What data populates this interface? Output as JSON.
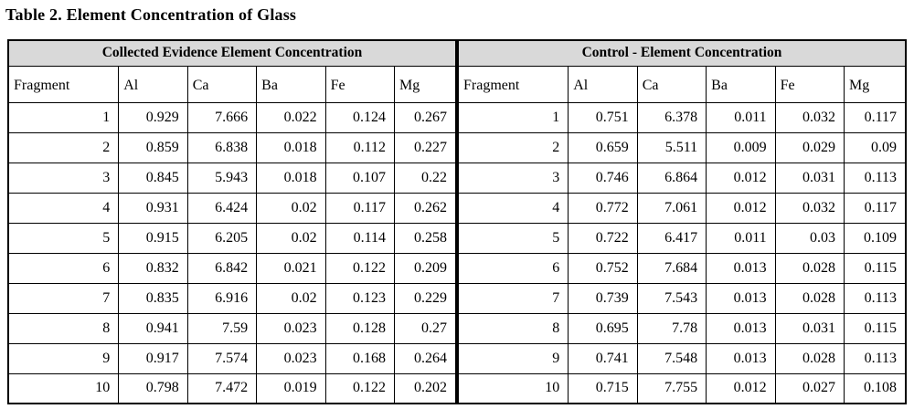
{
  "page": {
    "title": "Table 2. Element Concentration of Glass"
  },
  "columns": [
    "Fragment",
    "Al",
    "Ca",
    "Ba",
    "Fe",
    "Mg"
  ],
  "sections": [
    {
      "title": "Collected Evidence Element Concentration",
      "rows": [
        {
          "fragment": "1",
          "values": [
            "0.929",
            "7.666",
            "0.022",
            "0.124",
            "0.267"
          ]
        },
        {
          "fragment": "2",
          "values": [
            "0.859",
            "6.838",
            "0.018",
            "0.112",
            "0.227"
          ]
        },
        {
          "fragment": "3",
          "values": [
            "0.845",
            "5.943",
            "0.018",
            "0.107",
            "0.22"
          ]
        },
        {
          "fragment": "4",
          "values": [
            "0.931",
            "6.424",
            "0.02",
            "0.117",
            "0.262"
          ]
        },
        {
          "fragment": "5",
          "values": [
            "0.915",
            "6.205",
            "0.02",
            "0.114",
            "0.258"
          ]
        },
        {
          "fragment": "6",
          "values": [
            "0.832",
            "6.842",
            "0.021",
            "0.122",
            "0.209"
          ]
        },
        {
          "fragment": "7",
          "values": [
            "0.835",
            "6.916",
            "0.02",
            "0.123",
            "0.229"
          ]
        },
        {
          "fragment": "8",
          "values": [
            "0.941",
            "7.59",
            "0.023",
            "0.128",
            "0.27"
          ]
        },
        {
          "fragment": "9",
          "values": [
            "0.917",
            "7.574",
            "0.023",
            "0.168",
            "0.264"
          ]
        },
        {
          "fragment": "10",
          "values": [
            "0.798",
            "7.472",
            "0.019",
            "0.122",
            "0.202"
          ]
        }
      ]
    },
    {
      "title": "Control - Element Concentration",
      "rows": [
        {
          "fragment": "1",
          "values": [
            "0.751",
            "6.378",
            "0.011",
            "0.032",
            "0.117"
          ]
        },
        {
          "fragment": "2",
          "values": [
            "0.659",
            "5.511",
            "0.009",
            "0.029",
            "0.09"
          ]
        },
        {
          "fragment": "3",
          "values": [
            "0.746",
            "6.864",
            "0.012",
            "0.031",
            "0.113"
          ]
        },
        {
          "fragment": "4",
          "values": [
            "0.772",
            "7.061",
            "0.012",
            "0.032",
            "0.117"
          ]
        },
        {
          "fragment": "5",
          "values": [
            "0.722",
            "6.417",
            "0.011",
            "0.03",
            "0.109"
          ]
        },
        {
          "fragment": "6",
          "values": [
            "0.752",
            "7.684",
            "0.013",
            "0.028",
            "0.115"
          ]
        },
        {
          "fragment": "7",
          "values": [
            "0.739",
            "7.543",
            "0.013",
            "0.028",
            "0.113"
          ]
        },
        {
          "fragment": "8",
          "values": [
            "0.695",
            "7.78",
            "0.013",
            "0.031",
            "0.115"
          ]
        },
        {
          "fragment": "9",
          "values": [
            "0.741",
            "7.548",
            "0.013",
            "0.028",
            "0.113"
          ]
        },
        {
          "fragment": "10",
          "values": [
            "0.715",
            "7.755",
            "0.012",
            "0.027",
            "0.108"
          ]
        }
      ]
    }
  ],
  "colors": {
    "section_header_background": "#d9d9d9",
    "border": "#000000",
    "text": "#000000",
    "background": "#ffffff"
  }
}
